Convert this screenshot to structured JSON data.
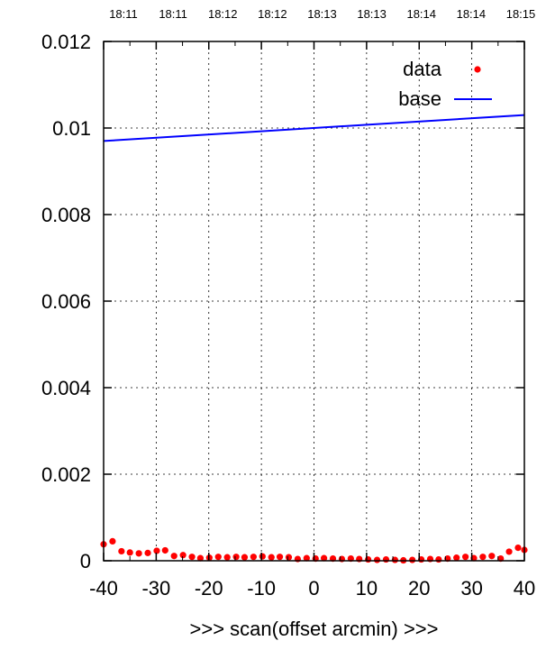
{
  "chart_data": {
    "type": "scatter",
    "title": "",
    "xlabel": ">>> scan(offset arcmin) >>>",
    "ylabel": "",
    "xlim": [
      -40,
      40
    ],
    "ylim": [
      0,
      0.012
    ],
    "x_ticks": [
      "-40",
      "-30",
      "-20",
      "-10",
      "0",
      "10",
      "20",
      "30",
      "40"
    ],
    "y_ticks": [
      "0",
      "0.002",
      "0.004",
      "0.006",
      "0.008",
      "0.01",
      "0.012"
    ],
    "top_time_labels": [
      "18:11",
      "18:11",
      "18:12",
      "18:12",
      "18:13",
      "18:13",
      "18:14",
      "18:14",
      "18:15"
    ],
    "grid": true,
    "legend_position": "top-right",
    "colors": {
      "data": "#ff0000",
      "base": "#0000ff"
    },
    "series": [
      {
        "name": "data",
        "style": "points",
        "x": [
          -40,
          -38.3,
          -36.6,
          -35,
          -33.3,
          -31.6,
          -29.9,
          -28.3,
          -26.6,
          -24.9,
          -23.2,
          -21.6,
          -19.9,
          -18.2,
          -16.5,
          -14.8,
          -13.2,
          -11.5,
          -9.8,
          -8.1,
          -6.5,
          -4.8,
          -3.1,
          -1.4,
          0.3,
          1.9,
          3.6,
          5.3,
          7,
          8.6,
          10.3,
          12,
          13.7,
          15.4,
          17,
          18.7,
          20.4,
          22.1,
          23.7,
          25.4,
          27.1,
          28.8,
          30.4,
          32.1,
          33.8,
          35.5,
          37.1,
          38.8,
          40
        ],
        "y": [
          0.00038,
          0.00045,
          0.00022,
          0.00019,
          0.00017,
          0.00018,
          0.00023,
          0.00024,
          0.00011,
          0.00013,
          9e-05,
          6e-05,
          7e-05,
          9e-05,
          8e-05,
          9e-05,
          8e-05,
          9e-05,
          0.0001,
          8e-05,
          9e-05,
          8e-05,
          4e-05,
          6e-05,
          5e-05,
          6e-05,
          5e-05,
          4e-05,
          5e-05,
          4e-05,
          3e-05,
          2e-05,
          3e-05,
          2e-05,
          1e-05,
          2e-05,
          3e-05,
          4e-05,
          3e-05,
          5e-05,
          7e-05,
          9e-05,
          6e-05,
          9e-05,
          0.00011,
          5e-05,
          0.00021,
          0.0003,
          0.00025
        ]
      },
      {
        "name": "base",
        "style": "line",
        "x": [
          -40,
          40
        ],
        "y": [
          0.0097,
          0.0103
        ]
      }
    ]
  }
}
